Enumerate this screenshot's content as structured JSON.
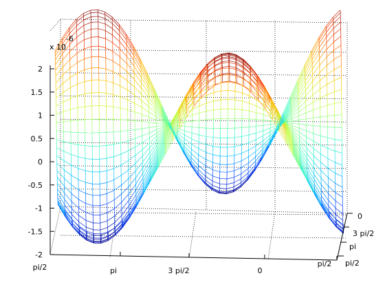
{
  "chart_data": {
    "type": "surface",
    "z_exponent_label": "x 10",
    "z_exponent_power": "-6",
    "z_ticks": [
      "2",
      "1.5",
      "1",
      "0.5",
      "0",
      "-0.5",
      "-1",
      "-1.5",
      "-2"
    ],
    "z_tick_values": [
      2,
      1.5,
      1,
      0.5,
      0,
      -0.5,
      -1,
      -1.5,
      -2
    ],
    "zlim": [
      -2,
      2
    ],
    "x_ticks": [
      "pi/2",
      "pi",
      "3 pi/2",
      "0",
      "pi/2"
    ],
    "y_ticks": [
      "0",
      "3 pi/2",
      "pi",
      "pi/2"
    ],
    "grid": true,
    "colormap": [
      "#00008f",
      "#0040ff",
      "#00c0ff",
      "#40ffc0",
      "#c0ff40",
      "#ffc000",
      "#ff4000",
      "#800000"
    ]
  }
}
